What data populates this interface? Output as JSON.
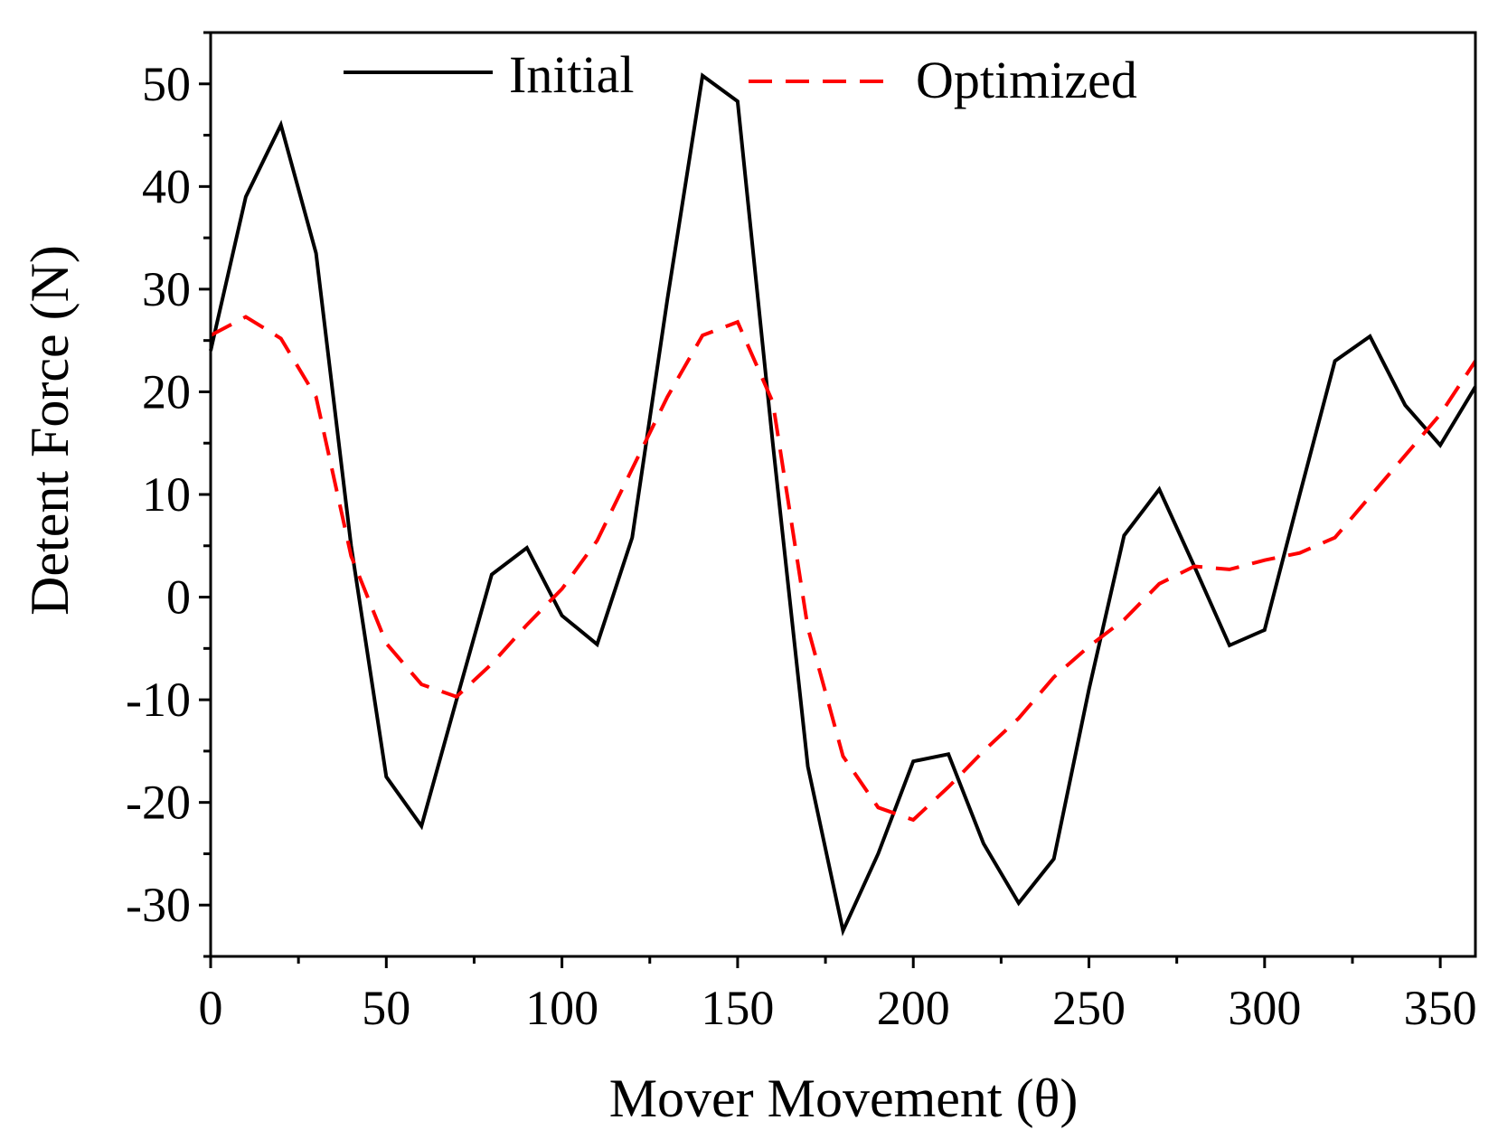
{
  "chart_data": {
    "type": "line",
    "title": "",
    "xlabel": "Mover Movement (θ)",
    "ylabel": "Detent Force (N)",
    "xlim": [
      0,
      360
    ],
    "ylim": [
      -35,
      55
    ],
    "xticks": [
      0,
      50,
      100,
      150,
      200,
      250,
      300,
      350
    ],
    "yticks": [
      50,
      40,
      30,
      20,
      10,
      0,
      -10,
      -20,
      -30
    ],
    "xtick_labels": [
      "0",
      "50",
      "100",
      "150",
      "200",
      "250",
      "300",
      "350"
    ],
    "ytick_labels": [
      "50",
      "40",
      "30",
      "20",
      "10",
      "0",
      "-10",
      "-20",
      "-30"
    ],
    "grid": false,
    "legend_position": "top",
    "series": [
      {
        "name": "Initial",
        "color": "#000000",
        "style": "solid",
        "x": [
          0,
          10,
          20,
          30,
          40,
          50,
          60,
          70,
          80,
          90,
          100,
          110,
          120,
          130,
          140,
          150,
          160,
          170,
          180,
          190,
          200,
          210,
          220,
          230,
          240,
          250,
          260,
          270,
          280,
          290,
          300,
          310,
          320,
          330,
          340,
          350,
          360
        ],
        "values": [
          24,
          39,
          46,
          33.5,
          5,
          -17.5,
          -22.3,
          -10,
          2.2,
          4.8,
          -1.8,
          -4.6,
          5.8,
          29,
          50.8,
          48.3,
          15,
          -16.5,
          -32.5,
          -25,
          -16,
          -15.3,
          -24,
          -29.8,
          -25.5,
          -9,
          6,
          10.5,
          3,
          -4.7,
          -3.2,
          10,
          23,
          25.4,
          18.7,
          14.8,
          20.5
        ]
      },
      {
        "name": "Optimized",
        "color": "#ff0000",
        "style": "dashed",
        "x": [
          0,
          10,
          20,
          30,
          40,
          50,
          60,
          70,
          80,
          90,
          100,
          110,
          120,
          130,
          140,
          150,
          160,
          170,
          180,
          190,
          200,
          210,
          220,
          230,
          240,
          250,
          260,
          270,
          280,
          290,
          300,
          310,
          320,
          330,
          340,
          350,
          360
        ],
        "values": [
          25.5,
          27.3,
          25.2,
          19.5,
          4,
          -4.5,
          -8.5,
          -9.7,
          -6.5,
          -2.7,
          0.8,
          5.5,
          12.5,
          19.5,
          25.5,
          26.8,
          19,
          -3,
          -15.5,
          -20.5,
          -21.7,
          -18.5,
          -15,
          -11.8,
          -7.8,
          -4.8,
          -2.2,
          1.3,
          3,
          2.7,
          3.6,
          4.3,
          5.8,
          9.8,
          13.8,
          17.8,
          23
        ]
      }
    ]
  }
}
